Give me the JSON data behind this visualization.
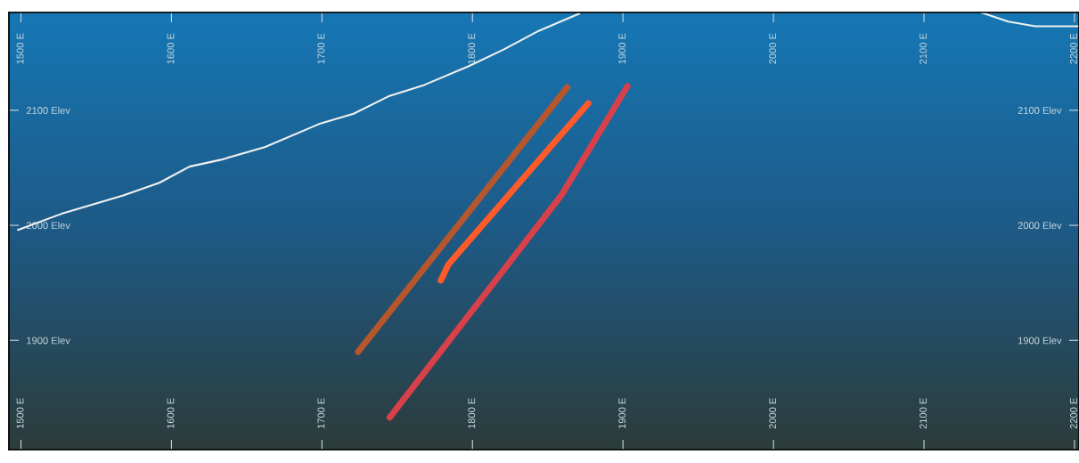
{
  "chart_data": {
    "type": "line",
    "xlim": [
      1492,
      2203
    ],
    "ylim": [
      1805,
      2185
    ],
    "xticks": [
      {
        "value": 1500,
        "label": "1500 E"
      },
      {
        "value": 1600,
        "label": "1600 E"
      },
      {
        "value": 1700,
        "label": "1700 E"
      },
      {
        "value": 1800,
        "label": "1800 E"
      },
      {
        "value": 1900,
        "label": "1900 E"
      },
      {
        "value": 2000,
        "label": "2000 E"
      },
      {
        "value": 2100,
        "label": "2100 E"
      },
      {
        "value": 2200,
        "label": "2200 E"
      }
    ],
    "x2lim": [
      1492,
      2203
    ],
    "x2ticks": [
      {
        "value": 1500,
        "label": "1500 E"
      },
      {
        "value": 1600,
        "label": "1600 E"
      },
      {
        "value": 1700,
        "label": "1700 E"
      },
      {
        "value": 1800,
        "label": "1800 E"
      },
      {
        "value": 1900,
        "label": "1900 E"
      },
      {
        "value": 2000,
        "label": "2000 E"
      },
      {
        "value": 2100,
        "label": "2100 E"
      },
      {
        "value": 2200,
        "label": "2200 E"
      }
    ],
    "yticks": [
      {
        "value": 1900,
        "label": "1900 Elev"
      },
      {
        "value": 2000,
        "label": "2000 Elev"
      },
      {
        "value": 2100,
        "label": "2100 Elev"
      }
    ],
    "y2lim": [
      1805,
      2185
    ],
    "y2ticks": [
      {
        "value": 1900,
        "label": "1900 Elev"
      },
      {
        "value": 2000,
        "label": "2000 Elev"
      },
      {
        "value": 2100,
        "label": "2100 Elev"
      }
    ],
    "grid": false,
    "marker": "none",
    "series": [
      {
        "color": "#f0f0f0",
        "x": [
          1498,
          1527,
          1568,
          1592,
          1612,
          1633,
          1662,
          1698,
          1721,
          1744,
          1768,
          1797,
          1821,
          1844,
          1871,
          null,
          2138,
          2156,
          2174,
          2203
        ],
        "values": [
          1996,
          2010,
          2026,
          2037,
          2051,
          2057,
          2068,
          2088,
          2097,
          2112,
          2122,
          2138,
          2153,
          2169,
          2184,
          null,
          2185,
          2177,
          2173,
          2173
        ]
      },
      {
        "color": "#b5562c",
        "x": [
          1863,
          1724
        ],
        "values": [
          2120,
          1890
        ]
      },
      {
        "color": "#ff5a2a",
        "x": [
          1877,
          1784,
          1779
        ],
        "values": [
          2106,
          1966,
          1952
        ]
      },
      {
        "color": "#d8404a",
        "x": [
          1903,
          1859,
          1745
        ],
        "values": [
          2121,
          2026,
          1833
        ]
      }
    ]
  }
}
